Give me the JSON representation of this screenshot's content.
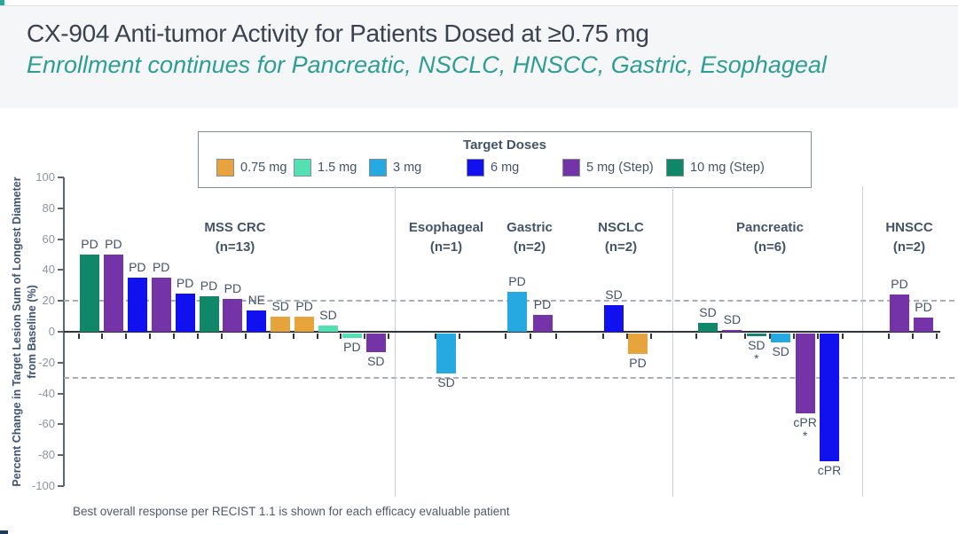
{
  "slide": {
    "title": "CX-904 Anti-tumor Activity for Patients Dosed at ≥0.75 mg",
    "subtitle": "Enrollment continues for Pancreatic, NSCLC, HNSCC, Gastric, Esophageal",
    "footnote": "Best overall response per RECIST 1.1 is shown for each efficacy evaluable patient"
  },
  "colors": {
    "accent_teal": "#2aa79b",
    "accent_navy": "#1d3a5f",
    "title_text": "#39424e",
    "subtitle_text": "#2e9d94",
    "doses": {
      "0.75 mg": "#e7a33c",
      "1.5 mg": "#54e0b0",
      "3 mg": "#25a9e0",
      "6 mg": "#1111ef",
      "5 mg (Step)": "#7433a6",
      "10 mg (Step)": "#11876a"
    }
  },
  "chart_data": {
    "type": "bar",
    "subtype": "waterfall",
    "legend": {
      "title": "Target Doses",
      "entries": [
        "0.75 mg",
        "1.5 mg",
        "3 mg",
        "6 mg",
        "5 mg (Step)",
        "10 mg (Step)"
      ],
      "position": "top"
    },
    "ylabel": "Percent Change in Target Lesion Sum of Longest Diameter from Baseline (%)",
    "ylim": [
      -100,
      100
    ],
    "yticks": [
      100,
      80,
      60,
      40,
      20,
      0,
      -20,
      -40,
      -60,
      -80,
      -100
    ],
    "reference_lines": [
      20,
      -30
    ],
    "grid": false,
    "groups": [
      {
        "name": "MSS CRC",
        "n": "(n=13)",
        "bars": [
          {
            "value": 50,
            "dose": "10 mg (Step)",
            "response": "PD"
          },
          {
            "value": 50,
            "dose": "5 mg (Step)",
            "response": "PD"
          },
          {
            "value": 35,
            "dose": "6 mg",
            "response": "PD"
          },
          {
            "value": 35,
            "dose": "5 mg (Step)",
            "response": "PD"
          },
          {
            "value": 25,
            "dose": "6 mg",
            "response": "PD"
          },
          {
            "value": 23,
            "dose": "10 mg (Step)",
            "response": "PD"
          },
          {
            "value": 21,
            "dose": "5 mg (Step)",
            "response": "PD"
          },
          {
            "value": 14,
            "dose": "6 mg",
            "response": "NE"
          },
          {
            "value": 10,
            "dose": "0.75 mg",
            "response": "SD"
          },
          {
            "value": 10,
            "dose": "0.75 mg",
            "response": "PD"
          },
          {
            "value": 4,
            "dose": "1.5 mg",
            "response": "SD"
          },
          {
            "value": -3,
            "dose": "1.5 mg",
            "response": "PD"
          },
          {
            "value": -12,
            "dose": "5 mg (Step)",
            "response": "SD"
          }
        ]
      },
      {
        "name": "Esophageal",
        "n": "(n=1)",
        "bars": [
          {
            "value": -26,
            "dose": "3 mg",
            "response": "SD"
          }
        ]
      },
      {
        "name": "Gastric",
        "n": "(n=2)",
        "bars": [
          {
            "value": 26,
            "dose": "3 mg",
            "response": "PD"
          },
          {
            "value": 11,
            "dose": "5 mg (Step)",
            "response": "PD"
          }
        ]
      },
      {
        "name": "NSCLC",
        "n": "(n=2)",
        "bars": [
          {
            "value": 17,
            "dose": "6 mg",
            "response": "SD"
          },
          {
            "value": -13,
            "dose": "0.75 mg",
            "response": "PD"
          }
        ]
      },
      {
        "name": "Pancreatic",
        "n": "(n=6)",
        "bars": [
          {
            "value": 6,
            "dose": "10 mg (Step)",
            "response": "SD"
          },
          {
            "value": 1,
            "dose": "5 mg (Step)",
            "response": "SD"
          },
          {
            "value": -2,
            "dose": "10 mg (Step)",
            "response": "SD",
            "star": true
          },
          {
            "value": -6,
            "dose": "3 mg",
            "response": "SD"
          },
          {
            "value": -52,
            "dose": "5 mg (Step)",
            "response": "cPR",
            "star": true
          },
          {
            "value": -83,
            "dose": "6 mg",
            "response": "cPR"
          }
        ]
      },
      {
        "name": "HNSCC",
        "n": "(n=2)",
        "bars": [
          {
            "value": 24,
            "dose": "5 mg (Step)",
            "response": "PD"
          },
          {
            "value": 9,
            "dose": "5 mg (Step)",
            "response": "PD"
          }
        ]
      }
    ]
  }
}
